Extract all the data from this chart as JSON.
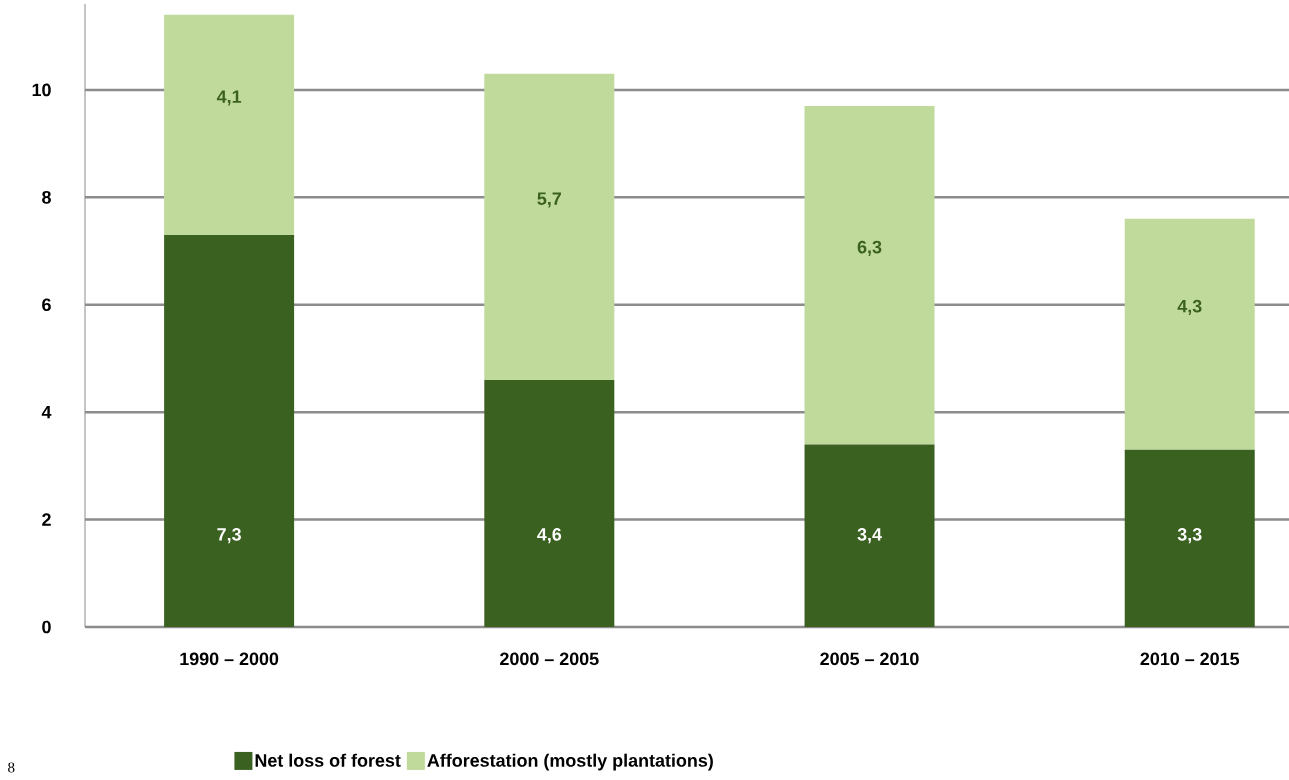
{
  "chart_data": {
    "type": "bar",
    "stacked": true,
    "categories": [
      "1990 – 2000",
      "2000 – 2005",
      "2005 – 2010",
      "2010 – 2015"
    ],
    "series": [
      {
        "name": "Net loss of forest",
        "color": "#3b6121",
        "values": [
          7.3,
          4.6,
          3.4,
          3.3
        ],
        "value_labels": [
          "7,3",
          "4,6",
          "3,4",
          "3,3"
        ]
      },
      {
        "name": "Afforestation (mostly plantations)",
        "color": "#c0da9b",
        "values": [
          4.1,
          5.7,
          6.3,
          4.3
        ],
        "value_labels": [
          "4,1",
          "5,7",
          "6,3",
          "4,3"
        ]
      }
    ],
    "ylim": [
      0,
      11.6
    ],
    "yticks": [
      0,
      2,
      4,
      6,
      8,
      10
    ],
    "grid": "y",
    "legend": "bottom",
    "annotations": [
      "8"
    ]
  }
}
